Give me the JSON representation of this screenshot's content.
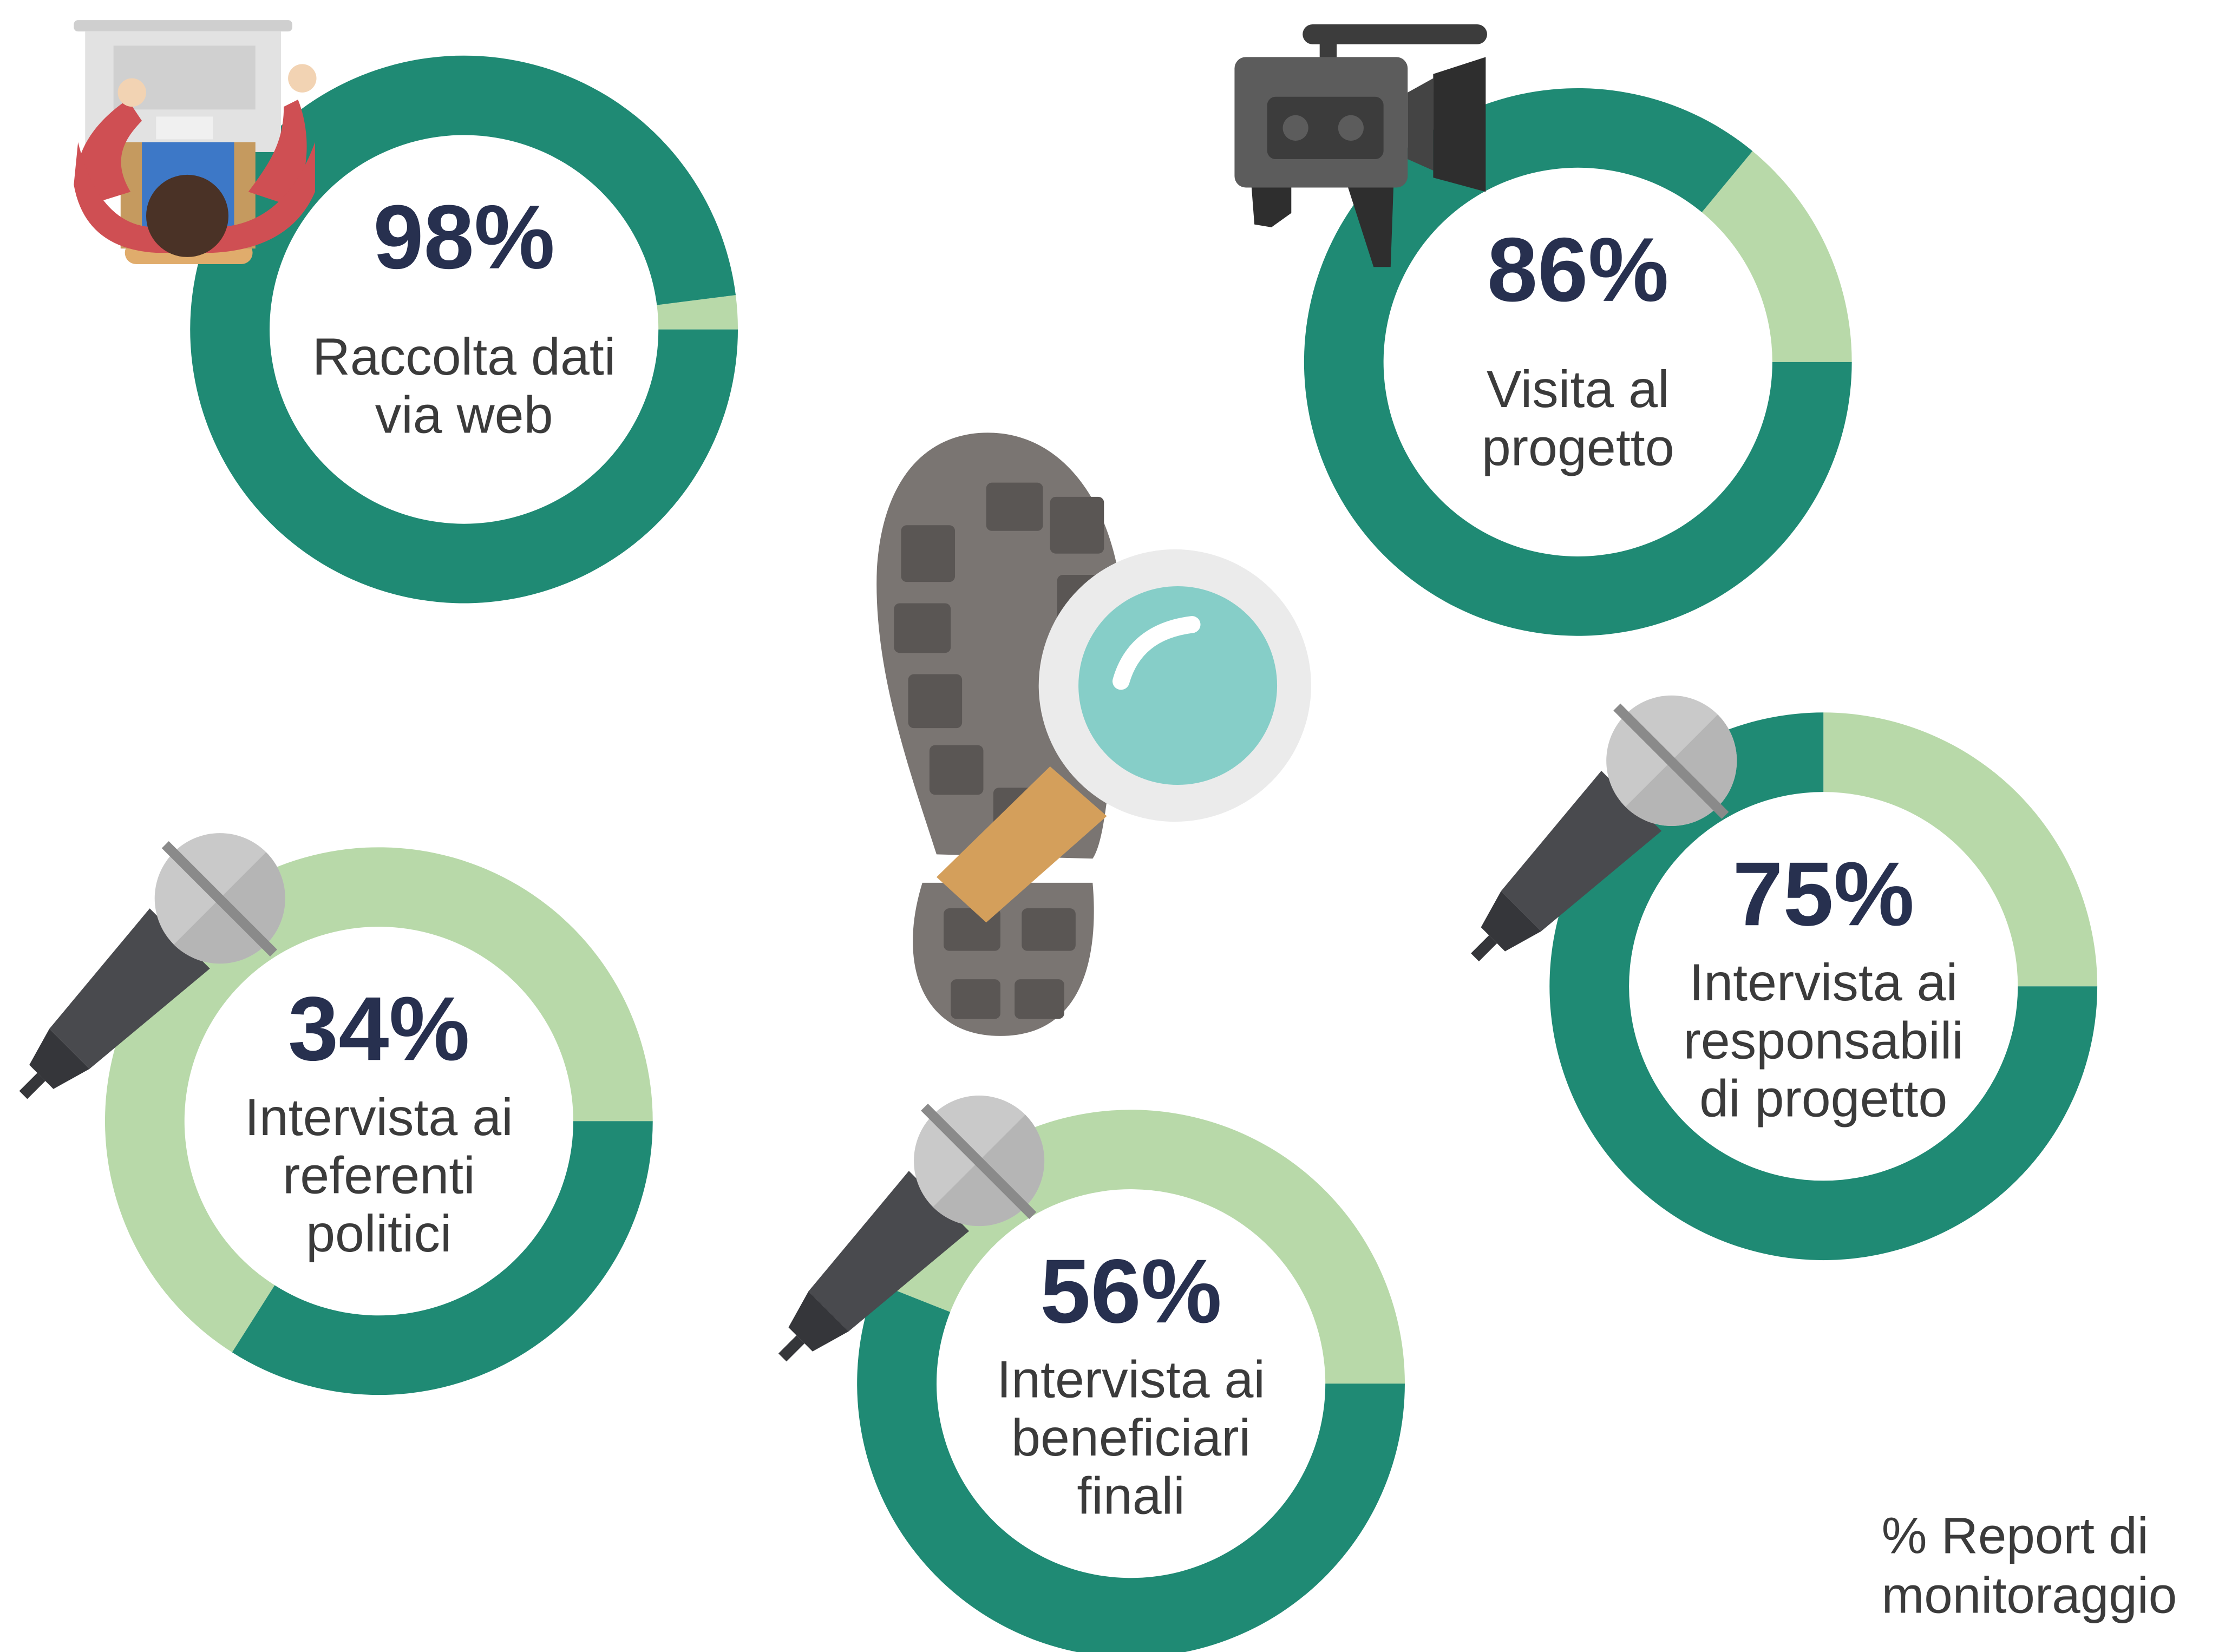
{
  "chart_data": [
    {
      "type": "donut",
      "values": [
        98
      ],
      "value_labels": [
        "98%"
      ],
      "label": [
        "Raccolta dati",
        "via web"
      ],
      "ylim": [
        0,
        100
      ],
      "color": "#1f8a74",
      "rest_color": "#b8d9a9"
    },
    {
      "type": "donut",
      "values": [
        86
      ],
      "value_labels": [
        "86%"
      ],
      "label": [
        "Visita al",
        "progetto"
      ],
      "ylim": [
        0,
        100
      ],
      "color": "#1f8a74",
      "rest_color": "#b8d9a9"
    },
    {
      "type": "donut",
      "values": [
        34
      ],
      "value_labels": [
        "34%"
      ],
      "label": [
        "Intervista ai",
        "referenti",
        "politici"
      ],
      "ylim": [
        0,
        100
      ],
      "color": "#1f8a74",
      "rest_color": "#b8d9a9"
    },
    {
      "type": "donut",
      "values": [
        75
      ],
      "value_labels": [
        "75%"
      ],
      "label": [
        "Intervista ai",
        "responsabili",
        "di progetto"
      ],
      "ylim": [
        0,
        100
      ],
      "color": "#1f8a74",
      "rest_color": "#b8d9a9"
    },
    {
      "type": "donut",
      "values": [
        56
      ],
      "value_labels": [
        "56%"
      ],
      "label": [
        "Intervista ai",
        "beneficiari",
        "finali"
      ],
      "ylim": [
        0,
        100
      ],
      "color": "#1f8a74",
      "rest_color": "#b8d9a9"
    }
  ],
  "note": [
    "% Report di",
    "monitoraggio"
  ]
}
